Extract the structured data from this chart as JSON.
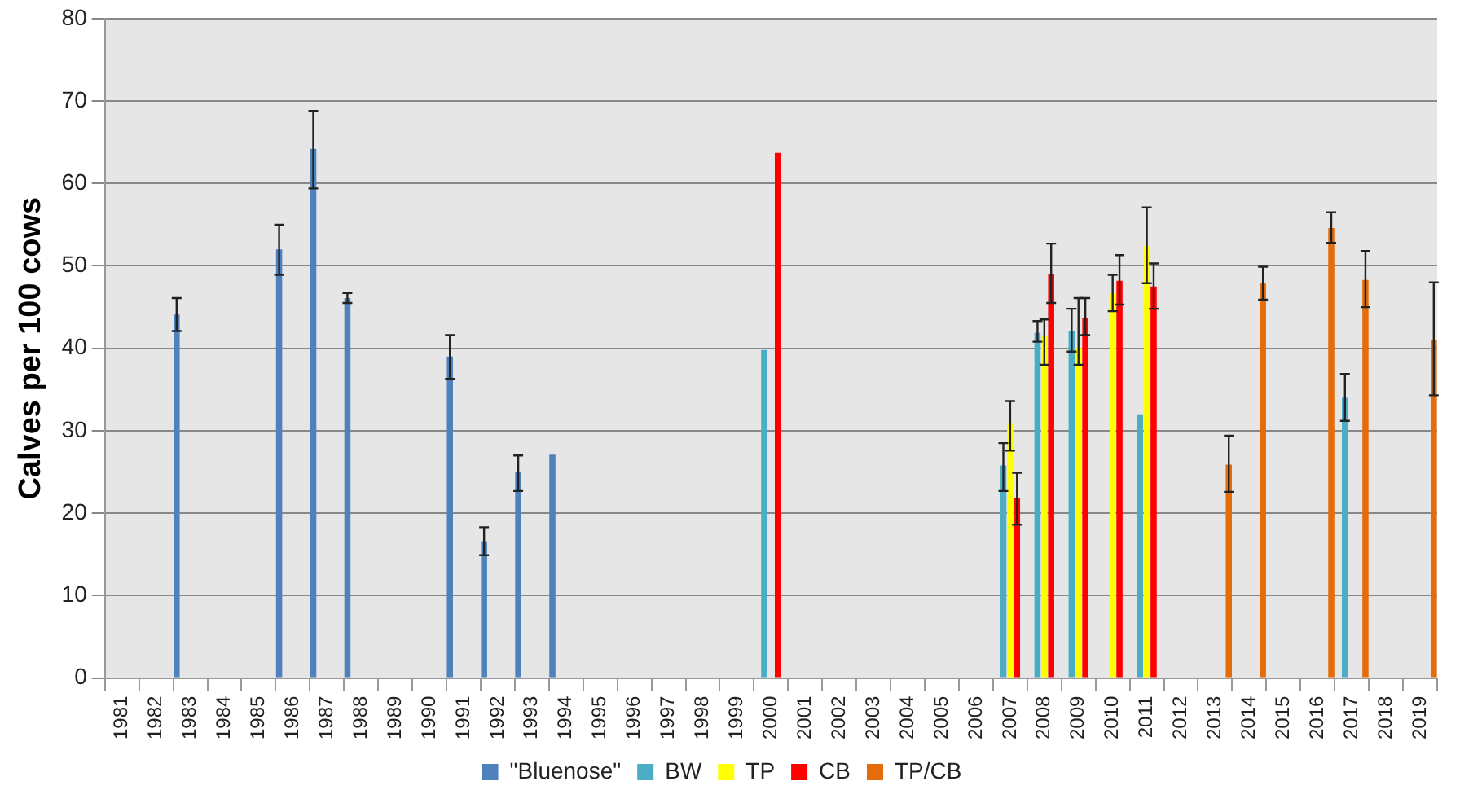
{
  "chart_data": {
    "type": "bar",
    "ylabel": "Calves per 100 cows",
    "categories": [
      "1981",
      "1982",
      "1983",
      "1984",
      "1985",
      "1986",
      "1987",
      "1988",
      "1989",
      "1990",
      "1991",
      "1992",
      "1993",
      "1994",
      "1995",
      "1996",
      "1997",
      "1998",
      "1999",
      "2000",
      "2001",
      "2002",
      "2003",
      "2004",
      "2005",
      "2006",
      "2007",
      "2008",
      "2009",
      "2010",
      "2011",
      "2012",
      "2013",
      "2014",
      "2015",
      "2016",
      "2017",
      "2018",
      "2019"
    ],
    "ylim": [
      0,
      80
    ],
    "yticks": [
      0,
      10,
      20,
      30,
      40,
      50,
      60,
      70,
      80
    ],
    "grid": "y",
    "legend": "bottom",
    "series": [
      {
        "name": "\"Bluenose\"",
        "color": "#4f81bd",
        "values": [
          null,
          null,
          44.1,
          null,
          null,
          52,
          64.2,
          46.1,
          null,
          null,
          39,
          16.6,
          25,
          27.1,
          null,
          null,
          null,
          null,
          null,
          null,
          null,
          null,
          null,
          null,
          null,
          null,
          null,
          null,
          null,
          null,
          null,
          null,
          null,
          null,
          null,
          null,
          null,
          null,
          null
        ],
        "errors": [
          null,
          null,
          [
            42.1,
            46.1
          ],
          null,
          null,
          [
            48.9,
            55
          ],
          [
            59.4,
            68.8
          ],
          [
            45.5,
            46.7
          ],
          null,
          null,
          [
            36.3,
            41.6
          ],
          [
            14.9,
            18.3
          ],
          [
            22.7,
            27
          ],
          null,
          null,
          null,
          null,
          null,
          null,
          null,
          null,
          null,
          null,
          null,
          null,
          null,
          null,
          null,
          null,
          null,
          null,
          null,
          null,
          null,
          null,
          null,
          null,
          null,
          null
        ]
      },
      {
        "name": "BW",
        "color": "#4bacc6",
        "values": [
          null,
          null,
          null,
          null,
          null,
          null,
          null,
          null,
          null,
          null,
          null,
          null,
          null,
          null,
          null,
          null,
          null,
          null,
          null,
          39.8,
          null,
          null,
          null,
          null,
          null,
          null,
          25.8,
          41.9,
          42.1,
          null,
          32,
          null,
          null,
          null,
          null,
          null,
          34,
          null,
          null
        ],
        "errors": [
          null,
          null,
          null,
          null,
          null,
          null,
          null,
          null,
          null,
          null,
          null,
          null,
          null,
          null,
          null,
          null,
          null,
          null,
          null,
          null,
          null,
          null,
          null,
          null,
          null,
          null,
          [
            22.7,
            28.5
          ],
          [
            40.8,
            43.3
          ],
          [
            39.6,
            44.8
          ],
          null,
          null,
          null,
          null,
          null,
          null,
          null,
          [
            31.2,
            36.9
          ],
          null,
          null
        ]
      },
      {
        "name": "TP",
        "color": "#ffff00",
        "values": [
          null,
          null,
          null,
          null,
          null,
          null,
          null,
          null,
          null,
          null,
          null,
          null,
          null,
          null,
          null,
          null,
          null,
          null,
          null,
          null,
          null,
          null,
          null,
          null,
          null,
          null,
          30.8,
          41.5,
          40.1,
          46.7,
          52.4,
          null,
          null,
          null,
          null,
          null,
          null,
          null,
          null
        ],
        "errors": [
          null,
          null,
          null,
          null,
          null,
          null,
          null,
          null,
          null,
          null,
          null,
          null,
          null,
          null,
          null,
          null,
          null,
          null,
          null,
          null,
          null,
          null,
          null,
          null,
          null,
          null,
          [
            27.6,
            33.6
          ],
          [
            38,
            43.5
          ],
          [
            38,
            46.1
          ],
          [
            44.5,
            48.9
          ],
          [
            47.9,
            57.1
          ],
          null,
          null,
          null,
          null,
          null,
          null,
          null,
          null
        ]
      },
      {
        "name": "CB",
        "color": "#ff0000",
        "values": [
          null,
          null,
          null,
          null,
          null,
          null,
          null,
          null,
          null,
          null,
          null,
          null,
          null,
          null,
          null,
          null,
          null,
          null,
          null,
          63.7,
          null,
          null,
          null,
          null,
          null,
          null,
          21.8,
          49,
          43.7,
          48.2,
          47.5,
          null,
          null,
          null,
          null,
          null,
          null,
          null,
          null
        ],
        "errors": [
          null,
          null,
          null,
          null,
          null,
          null,
          null,
          null,
          null,
          null,
          null,
          null,
          null,
          null,
          null,
          null,
          null,
          null,
          null,
          null,
          null,
          null,
          null,
          null,
          null,
          null,
          [
            18.6,
            24.9
          ],
          [
            45.5,
            52.7
          ],
          [
            41.6,
            46.1
          ],
          [
            45.3,
            51.3
          ],
          [
            44.8,
            50.3
          ],
          null,
          null,
          null,
          null,
          null,
          null,
          null,
          null
        ]
      },
      {
        "name": "TP/CB",
        "color": "#e46c0a",
        "values": [
          null,
          null,
          null,
          null,
          null,
          null,
          null,
          null,
          null,
          null,
          null,
          null,
          null,
          null,
          null,
          null,
          null,
          null,
          null,
          null,
          null,
          null,
          null,
          null,
          null,
          null,
          null,
          null,
          null,
          null,
          null,
          null,
          25.9,
          47.9,
          null,
          54.6,
          48.3,
          null,
          41
        ],
        "errors": [
          null,
          null,
          null,
          null,
          null,
          null,
          null,
          null,
          null,
          null,
          null,
          null,
          null,
          null,
          null,
          null,
          null,
          null,
          null,
          null,
          null,
          null,
          null,
          null,
          null,
          null,
          null,
          null,
          null,
          null,
          null,
          null,
          [
            22.6,
            29.4
          ],
          [
            45.9,
            49.9
          ],
          null,
          [
            52.8,
            56.5
          ],
          [
            45,
            51.8
          ],
          null,
          [
            34.3,
            48
          ]
        ]
      }
    ]
  }
}
